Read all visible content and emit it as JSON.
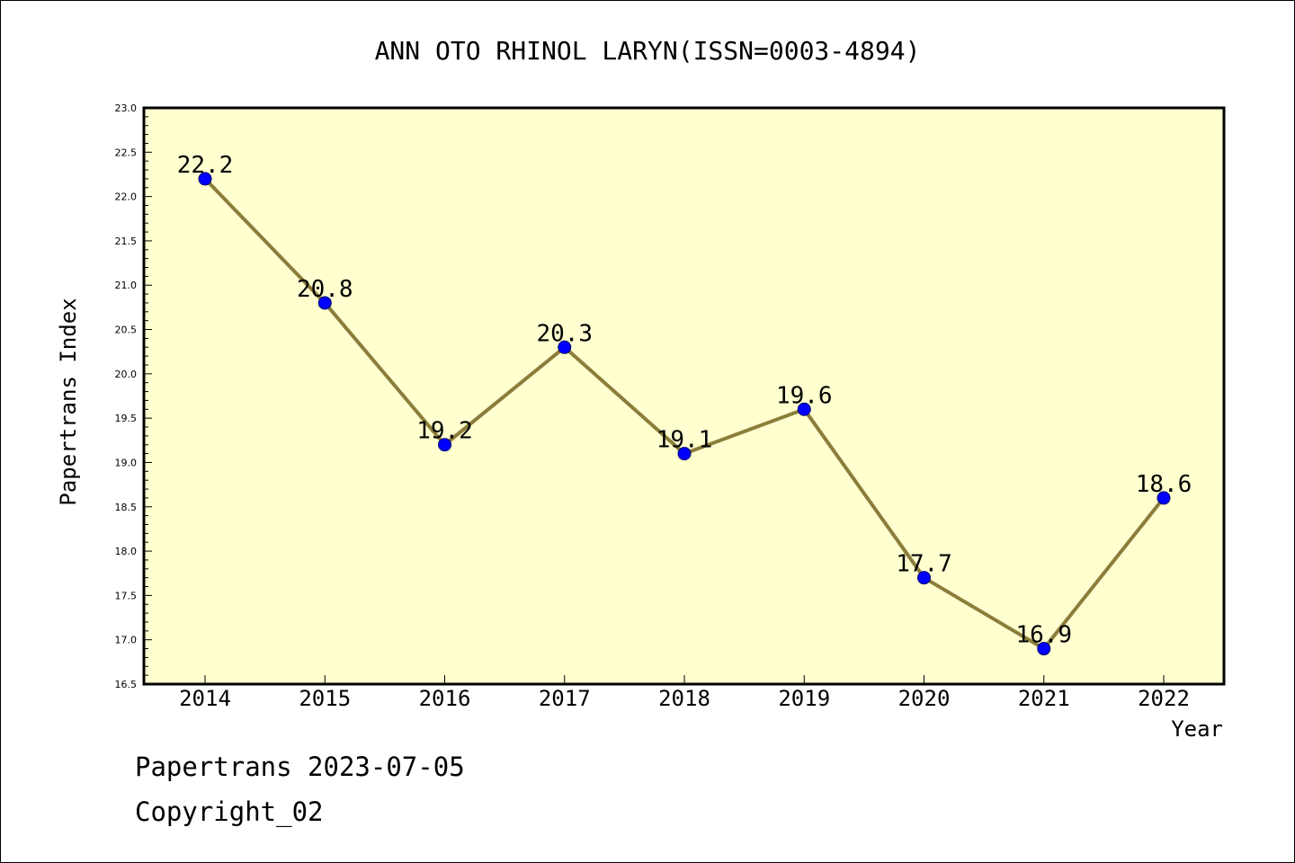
{
  "chart_data": {
    "type": "line",
    "title": "ANN OTO RHINOL LARYN(ISSN=0003-4894)",
    "xlabel": "Year",
    "ylabel": "Papertrans Index",
    "categories": [
      "2014",
      "2015",
      "2016",
      "2017",
      "2018",
      "2019",
      "2020",
      "2021",
      "2022"
    ],
    "series": [
      {
        "values": [
          22.2,
          20.8,
          19.2,
          20.3,
          19.1,
          19.6,
          17.7,
          16.9,
          18.6
        ]
      }
    ],
    "data_labels": [
      "22.2",
      "20.8",
      "19.2",
      "20.3",
      "19.1",
      "19.6",
      "17.7",
      "16.9",
      "18.6"
    ],
    "ylim": [
      16.5,
      23.0
    ],
    "yticks": [
      "16.5",
      "17.0",
      "17.5",
      "18.0",
      "18.5",
      "19.0",
      "19.5",
      "20.0",
      "20.5",
      "21.0",
      "21.5",
      "22.0",
      "22.5",
      "23.0"
    ],
    "grid": false,
    "colors": {
      "plot_background": "#ffffd0",
      "line": "#8b7d3a",
      "marker": "#0000ff",
      "marker_edge": "#00006e"
    }
  },
  "footer": {
    "line1": "Papertrans 2023-07-05",
    "line2": "Copyright_02"
  }
}
